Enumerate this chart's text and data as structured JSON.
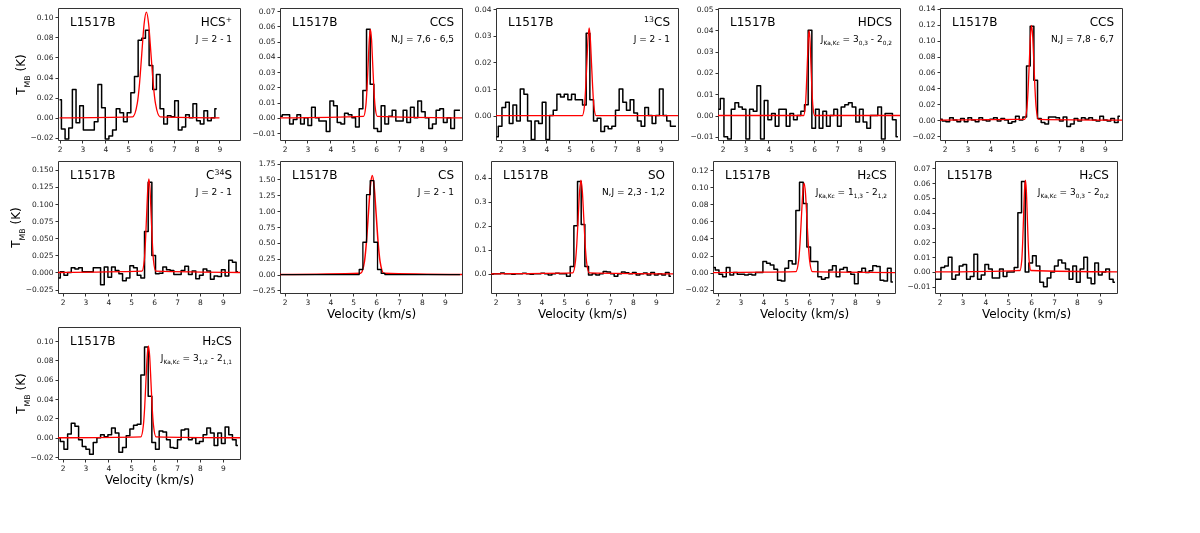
{
  "chart_data": [
    {
      "type": "step",
      "title": "HCS⁺",
      "subtitle": "J = 2 - 1",
      "annotations": [
        "L1517B"
      ],
      "ylabel": "T$_{MB}$ (K)",
      "xlim": [
        1.93,
        9.9
      ],
      "xticks": [
        2,
        3,
        4,
        5,
        6,
        7,
        8,
        9
      ],
      "ylim": [
        -0.022,
        0.109
      ],
      "yticks": [
        {
          "value": -0.02,
          "label": "−0.02"
        },
        {
          "value": 0,
          "label": "0.00"
        },
        {
          "value": 0.02,
          "label": "0.02"
        },
        {
          "value": 0.04,
          "label": "0.04"
        },
        {
          "value": 0.06,
          "label": "0.06"
        },
        {
          "value": 0.08,
          "label": "0.08"
        },
        {
          "value": 0.1,
          "label": "0.10"
        }
      ],
      "x": [
        2,
        2.16,
        2.32,
        2.48,
        2.64,
        2.8,
        2.96,
        3.12,
        3.28,
        3.44,
        3.6,
        3.76,
        3.92,
        4.08,
        4.24,
        4.4,
        4.56,
        4.72,
        4.88,
        5.04,
        5.2,
        5.36,
        5.52,
        5.68,
        5.84,
        6,
        6.16,
        6.32,
        6.48,
        6.64,
        6.8,
        6.96,
        7.12,
        7.28,
        7.44,
        7.6,
        7.76,
        7.92,
        8.08,
        8.24,
        8.4,
        8.56,
        8.72,
        8.88
      ],
      "series": [
        {
          "color": "#000000",
          "values": [
            0.018,
            -0.011,
            -0.021,
            -0.01,
            0.028,
            -0.005,
            0.012,
            -0.012,
            -0.012,
            -0.012,
            -0.004,
            0.033,
            0.01,
            -0.021,
            -0.018,
            -0.012,
            0.009,
            0.005,
            -0.004,
            0.005,
            0.025,
            0.041,
            0.077,
            0.079,
            0.087,
            0.052,
            0.028,
            0.043,
            0.009,
            -0.006,
            0.002,
            0.001,
            0.017,
            -0.012,
            -0.009,
            0.003,
            0,
            0.014,
            -0.003,
            -0.006,
            0.007,
            -0.003,
            0,
            0.009
          ]
        },
        {
          "type": "line",
          "color": "#ff0000",
          "x": [
            2,
            5.2,
            5.4,
            5.5,
            5.6,
            5.7,
            5.8,
            5.9,
            6,
            6.1,
            6.2,
            6.4,
            9
          ],
          "values": [
            0,
            0.001,
            0.014,
            0.034,
            0.064,
            0.093,
            0.105,
            0.093,
            0.064,
            0.034,
            0.014,
            0.001,
            0
          ]
        }
      ]
    },
    {
      "type": "step",
      "title": "CCS",
      "subtitle": "N,J = 7,6 - 6,5",
      "annotations": [
        "L1517B"
      ],
      "xlim": [
        1.8,
        9.75
      ],
      "xticks": [
        2,
        3,
        4,
        5,
        6,
        7,
        8,
        9
      ],
      "ylim": [
        -0.0145,
        0.072
      ],
      "yticks": [
        {
          "value": -0.01,
          "label": "−0.01"
        },
        {
          "value": 0,
          "label": "0.00"
        },
        {
          "value": 0.01,
          "label": "0.01"
        },
        {
          "value": 0.02,
          "label": "0.02"
        },
        {
          "value": 0.03,
          "label": "0.03"
        },
        {
          "value": 0.04,
          "label": "0.04"
        },
        {
          "value": 0.05,
          "label": "0.05"
        },
        {
          "value": 0.06,
          "label": "0.06"
        },
        {
          "value": 0.07,
          "label": "0.07"
        }
      ],
      "x": [
        1.82,
        1.98,
        2.14,
        2.3,
        2.46,
        2.62,
        2.78,
        2.94,
        3.1,
        3.26,
        3.42,
        3.58,
        3.74,
        3.9,
        4.06,
        4.22,
        4.38,
        4.54,
        4.7,
        4.86,
        5.02,
        5.18,
        5.34,
        5.5,
        5.66,
        5.82,
        5.98,
        6.14,
        6.3,
        6.46,
        6.62,
        6.78,
        6.94,
        7.1,
        7.26,
        7.42,
        7.58,
        7.74,
        7.9,
        8.06,
        8.22,
        8.38,
        8.54,
        8.7,
        8.86,
        9.02,
        9.18,
        9.34,
        9.5,
        9.66
      ],
      "series": [
        {
          "color": "#000000",
          "values": [
            0.001,
            0.002,
            0.002,
            -0.004,
            -0.001,
            0.002,
            -0.004,
            0,
            -0.005,
            0.007,
            0,
            -0.002,
            -0.002,
            -0.009,
            0.011,
            0.008,
            -0.003,
            -0.004,
            0.003,
            0.002,
            0,
            -0.006,
            0.006,
            0.018,
            0.058,
            0.022,
            -0.007,
            -0.009,
            0.008,
            -0.004,
            0.001,
            0.005,
            -0.002,
            -0.002,
            0.005,
            -0.003,
            0.007,
            0,
            0.011,
            0.004,
            0,
            -0.007,
            -0.004,
            0.005,
            0.006,
            -0.003,
            0,
            -0.007,
            0.005,
            0.005
          ]
        },
        {
          "type": "line",
          "color": "#ff0000",
          "x": [
            1.8,
            5.45,
            5.55,
            5.6,
            5.65,
            5.7,
            5.75,
            5.8,
            5.85,
            5.9,
            5.95,
            6.05,
            9.75
          ],
          "values": [
            0,
            0.001,
            0.008,
            0.019,
            0.035,
            0.051,
            0.058,
            0.051,
            0.035,
            0.019,
            0.008,
            0.001,
            0
          ]
        }
      ]
    },
    {
      "type": "step",
      "title": "$^{13}$CS",
      "subtitle": "J = 2 - 1",
      "annotations": [
        "L1517B"
      ],
      "xlim": [
        1.8,
        9.75
      ],
      "xticks": [
        2,
        3,
        4,
        5,
        6,
        7,
        8,
        9
      ],
      "ylim": [
        -0.0092,
        0.0405
      ],
      "yticks": [
        {
          "value": 0,
          "label": "0.00"
        },
        {
          "value": 0.01,
          "label": "0.01"
        },
        {
          "value": 0.02,
          "label": "0.02"
        },
        {
          "value": 0.03,
          "label": "0.03"
        },
        {
          "value": 0.04,
          "label": "0.04"
        }
      ],
      "x": [
        1.82,
        1.98,
        2.14,
        2.3,
        2.46,
        2.62,
        2.78,
        2.94,
        3.1,
        3.26,
        3.42,
        3.58,
        3.74,
        3.9,
        4.06,
        4.22,
        4.38,
        4.54,
        4.7,
        4.86,
        5.02,
        5.18,
        5.34,
        5.5,
        5.66,
        5.82,
        5.98,
        6.14,
        6.3,
        6.46,
        6.62,
        6.78,
        6.94,
        7.1,
        7.26,
        7.42,
        7.58,
        7.74,
        7.9,
        8.06,
        8.22,
        8.38,
        8.54,
        8.7,
        8.86,
        9.02,
        9.18,
        9.34,
        9.5,
        9.66
      ],
      "series": [
        {
          "color": "#000000",
          "values": [
            -0.008,
            -0.004,
            0.003,
            0.005,
            -0.003,
            0.004,
            -0.002,
            0.01,
            0.008,
            -0.002,
            -0.009,
            -0.002,
            -0.003,
            0.005,
            -0.009,
            0,
            0.002,
            0.008,
            0.007,
            0.008,
            0.006,
            0.008,
            0.006,
            0.006,
            0.004,
            0.031,
            0.006,
            -0.002,
            -0.001,
            -0.006,
            -0.004,
            -0.005,
            -0.004,
            0.002,
            0.01,
            0.005,
            0.002,
            0.006,
            0.001,
            -0.002,
            -0.004,
            0.003,
            0,
            -0.003,
            0,
            0.01,
            0,
            -0.002,
            -0.004,
            -0.004
          ]
        },
        {
          "type": "line",
          "color": "#ff0000",
          "x": [
            1.8,
            5.57,
            5.67,
            5.72,
            5.77,
            5.82,
            5.87,
            5.92,
            5.97,
            6.02,
            6.07,
            6.17,
            9.75
          ],
          "values": [
            0,
            0,
            0.004,
            0.011,
            0.02,
            0.029,
            0.033,
            0.029,
            0.02,
            0.011,
            0.004,
            0,
            0
          ]
        }
      ]
    },
    {
      "type": "step",
      "title": "HDCS",
      "subtitle": "J$_{Ka,Kc}$ = 3$_{0,3}$ - 2$_{0,2}$",
      "annotations": [
        "L1517B"
      ],
      "xlim": [
        1.8,
        9.75
      ],
      "xticks": [
        2,
        3,
        4,
        5,
        6,
        7,
        8,
        9
      ],
      "ylim": [
        -0.0115,
        0.0505
      ],
      "yticks": [
        {
          "value": -0.01,
          "label": "−0.01"
        },
        {
          "value": 0,
          "label": "0.00"
        },
        {
          "value": 0.01,
          "label": "0.01"
        },
        {
          "value": 0.02,
          "label": "0.02"
        },
        {
          "value": 0.03,
          "label": "0.03"
        },
        {
          "value": 0.04,
          "label": "0.04"
        },
        {
          "value": 0.05,
          "label": "0.05"
        }
      ],
      "x": [
        1.82,
        1.98,
        2.14,
        2.3,
        2.46,
        2.62,
        2.78,
        2.94,
        3.1,
        3.26,
        3.42,
        3.58,
        3.74,
        3.9,
        4.06,
        4.22,
        4.38,
        4.54,
        4.7,
        4.86,
        5.02,
        5.18,
        5.34,
        5.5,
        5.66,
        5.82,
        5.98,
        6.14,
        6.3,
        6.46,
        6.62,
        6.78,
        6.94,
        7.1,
        7.26,
        7.42,
        7.58,
        7.74,
        7.9,
        8.06,
        8.22,
        8.38,
        8.54,
        8.7,
        8.86,
        9.02,
        9.18,
        9.34,
        9.5,
        9.66
      ],
      "series": [
        {
          "color": "#000000",
          "values": [
            0.003,
            0.008,
            -0.01,
            -0.011,
            0.003,
            0.006,
            0.004,
            0.003,
            -0.011,
            0.003,
            0.002,
            0.014,
            -0.011,
            0.007,
            -0.002,
            0.001,
            -0.005,
            0.003,
            0.003,
            -0.005,
            0.001,
            -0.002,
            0,
            0.002,
            0.005,
            0.04,
            -0.006,
            0.003,
            -0.006,
            0.002,
            -0.005,
            0,
            0.003,
            -0.005,
            0.004,
            0.005,
            0.006,
            0.004,
            -0.003,
            0.003,
            -0.003,
            -0.006,
            0,
            0,
            0.004,
            -0.011,
            0.001,
            0.001,
            -0.002,
            -0.01
          ]
        },
        {
          "type": "line",
          "color": "#ff0000",
          "x": [
            1.8,
            5.54,
            5.62,
            5.66,
            5.7,
            5.74,
            5.78,
            5.82,
            5.86,
            5.9,
            5.94,
            6.02,
            9.75
          ],
          "values": [
            0,
            0,
            0.005,
            0.013,
            0.024,
            0.035,
            0.04,
            0.035,
            0.024,
            0.013,
            0.005,
            0,
            0
          ]
        }
      ]
    },
    {
      "type": "step",
      "title": "CCS",
      "subtitle": "N,J = 7,8 - 6,7",
      "annotations": [
        "L1517B"
      ],
      "xlim": [
        1.8,
        9.75
      ],
      "xticks": [
        2,
        3,
        4,
        5,
        6,
        7,
        8,
        9
      ],
      "ylim": [
        -0.025,
        0.141
      ],
      "yticks": [
        {
          "value": -0.02,
          "label": "−0.02"
        },
        {
          "value": 0,
          "label": "0.00"
        },
        {
          "value": 0.02,
          "label": "0.02"
        },
        {
          "value": 0.04,
          "label": "0.04"
        },
        {
          "value": 0.06,
          "label": "0.06"
        },
        {
          "value": 0.08,
          "label": "0.08"
        },
        {
          "value": 0.1,
          "label": "0.10"
        },
        {
          "value": 0.12,
          "label": "0.12"
        },
        {
          "value": 0.14,
          "label": "0.14"
        }
      ],
      "x": [
        1.82,
        1.98,
        2.14,
        2.3,
        2.46,
        2.62,
        2.78,
        2.94,
        3.1,
        3.26,
        3.42,
        3.58,
        3.74,
        3.9,
        4.06,
        4.22,
        4.38,
        4.54,
        4.7,
        4.86,
        5.02,
        5.18,
        5.34,
        5.5,
        5.66,
        5.82,
        5.98,
        6.14,
        6.3,
        6.46,
        6.62,
        6.78,
        6.94,
        7.1,
        7.26,
        7.42,
        7.58,
        7.74,
        7.9,
        8.06,
        8.22,
        8.38,
        8.54,
        8.7,
        8.86,
        9.02,
        9.18,
        9.34,
        9.5,
        9.66
      ],
      "series": [
        {
          "color": "#000000",
          "values": [
            0.001,
            -0.001,
            -0.002,
            0.003,
            0,
            -0.002,
            0.002,
            -0.002,
            0.003,
            0,
            -0.002,
            0.003,
            0,
            -0.001,
            0.001,
            0.003,
            -0.001,
            0.002,
            0,
            -0.004,
            -0.002,
            0.005,
            0,
            0.004,
            0.068,
            0.118,
            0.05,
            0.002,
            -0.003,
            -0.005,
            0.004,
            0.004,
            0.003,
            -0.001,
            0.004,
            -0.008,
            -0.005,
            0.002,
            -0.001,
            0.003,
            0.001,
            0.003,
            0,
            -0.001,
            0.005,
            0,
            -0.001,
            0.002,
            -0.003,
            0.005
          ]
        },
        {
          "type": "line",
          "color": "#ff0000",
          "x": [
            1.8,
            5.5,
            5.6,
            5.65,
            5.7,
            5.75,
            5.8,
            5.85,
            5.9,
            5.95,
            6,
            6.1,
            9.75
          ],
          "values": [
            0,
            0.001,
            0.016,
            0.039,
            0.072,
            0.105,
            0.119,
            0.105,
            0.072,
            0.039,
            0.016,
            0.001,
            0
          ]
        }
      ]
    },
    {
      "type": "step",
      "title": "C$^{34}$S",
      "subtitle": "J = 2 - 1",
      "annotations": [
        "L1517B"
      ],
      "ylabel": "T$_{MB}$ (K)",
      "xlim": [
        1.8,
        9.75
      ],
      "xticks": [
        2,
        3,
        4,
        5,
        6,
        7,
        8,
        9
      ],
      "ylim": [
        -0.03,
        0.163
      ],
      "yticks": [
        {
          "value": -0.025,
          "label": "−0.025"
        },
        {
          "value": 0,
          "label": "0.000"
        },
        {
          "value": 0.025,
          "label": "0.025"
        },
        {
          "value": 0.05,
          "label": "0.050"
        },
        {
          "value": 0.075,
          "label": "0.075"
        },
        {
          "value": 0.1,
          "label": "0.100"
        },
        {
          "value": 0.125,
          "label": "0.125"
        },
        {
          "value": 0.15,
          "label": "0.150"
        }
      ],
      "x": [
        1.82,
        1.98,
        2.14,
        2.3,
        2.46,
        2.62,
        2.78,
        2.94,
        3.1,
        3.26,
        3.42,
        3.58,
        3.74,
        3.9,
        4.06,
        4.22,
        4.38,
        4.54,
        4.7,
        4.86,
        5.02,
        5.18,
        5.34,
        5.5,
        5.66,
        5.82,
        5.98,
        6.14,
        6.3,
        6.46,
        6.62,
        6.78,
        6.94,
        7.1,
        7.26,
        7.42,
        7.58,
        7.74,
        7.9,
        8.06,
        8.22,
        8.38,
        8.54,
        8.7,
        8.86,
        9.02,
        9.18,
        9.34,
        9.5,
        9.66
      ],
      "series": [
        {
          "color": "#000000",
          "values": [
            -0.008,
            0.001,
            -0.004,
            0,
            0.007,
            0.005,
            0.007,
            0.001,
            0.001,
            0.001,
            0.007,
            0.007,
            -0.018,
            0.008,
            -0.007,
            0.008,
            0.003,
            -0.002,
            -0.012,
            -0.008,
            0.01,
            0.007,
            -0.004,
            -0.008,
            0.06,
            0.132,
            0.025,
            -0.002,
            -0.001,
            0.008,
            0.004,
            0.003,
            -0.003,
            -0.003,
            0.003,
            0.009,
            -0.003,
            0.002,
            -0.009,
            -0.004,
            0.005,
            0.002,
            -0.01,
            -0.005,
            -0.006,
            0.004,
            -0.005,
            0.018,
            0.015,
            0.001
          ]
        },
        {
          "type": "line",
          "color": "#ff0000",
          "x": [
            1.8,
            5.47,
            5.57,
            5.62,
            5.67,
            5.72,
            5.77,
            5.82,
            5.87,
            5.92,
            5.97,
            6.07,
            9.75
          ],
          "values": [
            0,
            0.002,
            0.018,
            0.045,
            0.083,
            0.121,
            0.137,
            0.121,
            0.083,
            0.045,
            0.018,
            0.002,
            0
          ]
        }
      ]
    },
    {
      "type": "step",
      "title": "CS",
      "subtitle": "J = 2 - 1",
      "annotations": [
        "L1517B"
      ],
      "xlabel": "Velocity (km/s)",
      "xlim": [
        1.8,
        9.75
      ],
      "xticks": [
        2,
        3,
        4,
        5,
        6,
        7,
        8,
        9
      ],
      "ylim": [
        -0.29,
        1.79
      ],
      "yticks": [
        {
          "value": -0.25,
          "label": "−0.25"
        },
        {
          "value": 0,
          "label": "0.00"
        },
        {
          "value": 0.25,
          "label": "0.25"
        },
        {
          "value": 0.5,
          "label": "0.50"
        },
        {
          "value": 0.75,
          "label": "0.75"
        },
        {
          "value": 1,
          "label": "1.00"
        },
        {
          "value": 1.25,
          "label": "1.25"
        },
        {
          "value": 1.5,
          "label": "1.50"
        },
        {
          "value": 1.75,
          "label": "1.75"
        }
      ],
      "x": [
        1.82,
        1.98,
        2.14,
        2.3,
        2.46,
        2.62,
        2.78,
        2.94,
        3.1,
        3.26,
        3.42,
        3.58,
        3.74,
        3.9,
        4.06,
        4.22,
        4.38,
        4.54,
        4.7,
        4.86,
        5.02,
        5.18,
        5.34,
        5.5,
        5.66,
        5.82,
        5.98,
        6.14,
        6.3,
        6.46,
        6.62,
        6.78,
        6.94,
        7.1,
        7.26,
        7.42,
        7.58,
        7.74,
        7.9,
        8.06,
        8.22,
        8.38,
        8.54,
        8.7,
        8.86,
        9.02,
        9.18,
        9.34,
        9.5,
        9.66
      ],
      "series": [
        {
          "type": "line",
          "color": "#ff0000",
          "x": [
            1.8,
            5.32,
            5.49,
            5.575,
            5.66,
            5.745,
            5.83,
            5.915,
            6,
            6.085,
            6.17,
            6.34,
            9.75
          ],
          "values": [
            0,
            0.02,
            0.21,
            0.51,
            0.95,
            1.38,
            1.56,
            1.38,
            0.95,
            0.51,
            0.21,
            0.02,
            0
          ]
        },
        {
          "color": "#000000",
          "values": [
            0,
            0,
            0,
            0,
            0,
            0,
            0,
            0,
            0,
            0,
            0,
            0,
            0,
            0,
            0,
            0,
            0,
            0,
            0,
            0,
            0,
            0,
            0.08,
            0.51,
            1.26,
            1.48,
            0.51,
            0.08,
            0.02,
            0,
            0,
            0,
            0,
            0,
            0,
            0,
            0,
            0,
            0,
            0,
            0,
            0,
            0,
            0,
            0,
            0,
            0,
            0,
            0,
            0
          ]
        }
      ]
    },
    {
      "type": "step",
      "title": "SO",
      "subtitle": "N,J = 2,3 - 1,2",
      "annotations": [
        "L1517B"
      ],
      "xlabel": "Velocity (km/s)",
      "xlim": [
        1.8,
        9.75
      ],
      "xticks": [
        2,
        3,
        4,
        5,
        6,
        7,
        8,
        9
      ],
      "ylim": [
        -0.08,
        0.47
      ],
      "yticks": [
        {
          "value": 0,
          "label": "0.0"
        },
        {
          "value": 0.1,
          "label": "0.1"
        },
        {
          "value": 0.2,
          "label": "0.2"
        },
        {
          "value": 0.3,
          "label": "0.3"
        },
        {
          "value": 0.4,
          "label": "0.4"
        }
      ],
      "x": [
        1.82,
        1.98,
        2.14,
        2.3,
        2.46,
        2.62,
        2.78,
        2.94,
        3.1,
        3.26,
        3.42,
        3.58,
        3.74,
        3.9,
        4.06,
        4.22,
        4.38,
        4.54,
        4.7,
        4.86,
        5.02,
        5.18,
        5.34,
        5.5,
        5.66,
        5.82,
        5.98,
        6.14,
        6.3,
        6.46,
        6.62,
        6.78,
        6.94,
        7.1,
        7.26,
        7.42,
        7.58,
        7.74,
        7.9,
        8.06,
        8.22,
        8.38,
        8.54,
        8.7,
        8.86,
        9.02,
        9.18,
        9.34,
        9.5,
        9.66
      ],
      "series": [
        {
          "color": "#000000",
          "values": [
            -0.002,
            0,
            0,
            0.003,
            0,
            0,
            -0.002,
            0,
            0,
            0.002,
            0,
            -0.002,
            0,
            0,
            0.002,
            0,
            -0.005,
            0,
            0.002,
            0,
            0,
            -0.01,
            0.03,
            0.2,
            0.385,
            0.205,
            0.03,
            -0.005,
            0,
            -0.005,
            0,
            0.01,
            0.008,
            0,
            -0.01,
            0,
            0.008,
            0.004,
            0,
            0.005,
            -0.005,
            0,
            0.003,
            -0.005,
            0.005,
            -0.005,
            0,
            -0.005,
            0.005,
            -0.01
          ]
        },
        {
          "type": "line",
          "color": "#ff0000",
          "x": [
            1.8,
            5.37,
            5.49,
            5.55,
            5.61,
            5.67,
            5.73,
            5.79,
            5.85,
            5.91,
            5.97,
            6.09,
            9.75
          ],
          "values": [
            0,
            0.004,
            0.053,
            0.127,
            0.237,
            0.344,
            0.39,
            0.344,
            0.237,
            0.127,
            0.053,
            0.004,
            0
          ]
        }
      ]
    },
    {
      "type": "step",
      "title": "H₂CS",
      "subtitle": "J$_{Ka,Kc}$ = 1$_{1,3}$ - 2$_{1,2}$",
      "annotations": [
        "L1517B"
      ],
      "xlabel": "Velocity (km/s)",
      "xlim": [
        1.8,
        9.75
      ],
      "xticks": [
        2,
        3,
        4,
        5,
        6,
        7,
        8,
        9
      ],
      "ylim": [
        -0.024,
        0.131
      ],
      "yticks": [
        {
          "value": -0.02,
          "label": "−0.02"
        },
        {
          "value": 0,
          "label": "0.00"
        },
        {
          "value": 0.02,
          "label": "0.02"
        },
        {
          "value": 0.04,
          "label": "0.04"
        },
        {
          "value": 0.06,
          "label": "0.06"
        },
        {
          "value": 0.08,
          "label": "0.08"
        },
        {
          "value": 0.1,
          "label": "0.10"
        },
        {
          "value": 0.12,
          "label": "0.12"
        }
      ],
      "x": [
        1.82,
        1.98,
        2.14,
        2.3,
        2.46,
        2.62,
        2.78,
        2.94,
        3.1,
        3.26,
        3.42,
        3.58,
        3.74,
        3.9,
        4.06,
        4.22,
        4.38,
        4.54,
        4.7,
        4.86,
        5.02,
        5.18,
        5.34,
        5.5,
        5.66,
        5.82,
        5.98,
        6.14,
        6.3,
        6.46,
        6.62,
        6.78,
        6.94,
        7.1,
        7.26,
        7.42,
        7.58,
        7.74,
        7.9,
        8.06,
        8.22,
        8.38,
        8.54,
        8.7,
        8.86,
        9.02,
        9.18,
        9.34,
        9.5,
        9.66
      ],
      "series": [
        {
          "color": "#000000",
          "values": [
            0.006,
            0.003,
            -0.002,
            -0.005,
            0.006,
            -0.003,
            0,
            -0.002,
            -0.002,
            -0.003,
            -0.002,
            -0.003,
            0,
            0,
            0.013,
            0.011,
            0.009,
            0.004,
            -0.009,
            -0.01,
            0.005,
            0.014,
            0.01,
            0.073,
            0.106,
            0.081,
            0.03,
            0.013,
            0.013,
            -0.005,
            -0.008,
            -0.006,
            0.003,
            0.008,
            -0.005,
            0.004,
            0.006,
            0.001,
            -0.002,
            -0.013,
            0.001,
            0.005,
            0,
            0.002,
            0.008,
            0.007,
            -0.009,
            -0.01,
            0.005,
            -0.011
          ]
        },
        {
          "type": "line",
          "color": "#ff0000",
          "x": [
            1.8,
            5.42,
            5.54,
            5.6,
            5.66,
            5.72,
            5.78,
            5.84,
            5.9,
            5.96,
            6.02,
            6.14,
            9.75
          ],
          "values": [
            0,
            0.001,
            0.014,
            0.034,
            0.064,
            0.093,
            0.105,
            0.093,
            0.064,
            0.034,
            0.014,
            0.001,
            0
          ]
        }
      ]
    },
    {
      "type": "step",
      "title": "H₂CS",
      "subtitle": "J$_{Ka,Kc}$ = 3$_{0,3}$ - 2$_{0,2}$",
      "annotations": [
        "L1517B"
      ],
      "xlabel": "Velocity (km/s)",
      "xlim": [
        1.8,
        9.75
      ],
      "xticks": [
        2,
        3,
        4,
        5,
        6,
        7,
        8,
        9
      ],
      "ylim": [
        -0.0142,
        0.0749
      ],
      "yticks": [
        {
          "value": -0.01,
          "label": "−0.01"
        },
        {
          "value": 0,
          "label": "0.00"
        },
        {
          "value": 0.01,
          "label": "0.01"
        },
        {
          "value": 0.02,
          "label": "0.02"
        },
        {
          "value": 0.03,
          "label": "0.03"
        },
        {
          "value": 0.04,
          "label": "0.04"
        },
        {
          "value": 0.05,
          "label": "0.05"
        },
        {
          "value": 0.06,
          "label": "0.06"
        },
        {
          "value": 0.07,
          "label": "0.07"
        }
      ],
      "x": [
        1.82,
        1.98,
        2.14,
        2.3,
        2.46,
        2.62,
        2.78,
        2.94,
        3.1,
        3.26,
        3.42,
        3.58,
        3.74,
        3.9,
        4.06,
        4.22,
        4.38,
        4.54,
        4.7,
        4.86,
        5.02,
        5.18,
        5.34,
        5.5,
        5.66,
        5.82,
        5.98,
        6.14,
        6.3,
        6.46,
        6.62,
        6.78,
        6.94,
        7.1,
        7.26,
        7.42,
        7.58,
        7.74,
        7.9,
        8.06,
        8.22,
        8.38,
        8.54,
        8.7,
        8.86,
        9.02,
        9.18,
        9.34,
        9.5,
        9.66
      ],
      "series": [
        {
          "color": "#000000",
          "values": [
            -0.005,
            -0.005,
            0.003,
            0.004,
            0.01,
            -0.005,
            -0.002,
            0.004,
            0.005,
            -0.005,
            -0.003,
            0.012,
            -0.005,
            -0.002,
            0.005,
            0.002,
            -0.004,
            -0.004,
            0.002,
            -0.003,
            0,
            0,
            0.003,
            0.04,
            0.061,
            0,
            0.006,
            0.011,
            0.004,
            -0.007,
            -0.01,
            -0.004,
            0,
            0.004,
            0.008,
            0.006,
            0.002,
            -0.005,
            0.004,
            -0.007,
            0.002,
            0.01,
            -0.004,
            -0.008,
            0.006,
            -0.002,
            0,
            0.002,
            -0.005,
            -0.007
          ]
        },
        {
          "type": "line",
          "color": "#ff0000",
          "x": [
            1.8,
            5.51,
            5.59,
            5.63,
            5.67,
            5.71,
            5.75,
            5.79,
            5.83,
            5.87,
            5.91,
            5.99,
            9.75
          ],
          "values": [
            0,
            0.001,
            0.008,
            0.02,
            0.038,
            0.055,
            0.062,
            0.055,
            0.038,
            0.02,
            0.008,
            0.001,
            0
          ]
        }
      ]
    },
    {
      "type": "step",
      "title": "H₂CS",
      "subtitle": "J$_{Ka,Kc}$ = 3$_{1,2}$ - 2$_{1,1}$",
      "annotations": [
        "L1517B"
      ],
      "ylabel": "T$_{MB}$ (K)",
      "xlabel": "Velocity (km/s)",
      "xlim": [
        1.8,
        9.75
      ],
      "xticks": [
        2,
        3,
        4,
        5,
        6,
        7,
        8,
        9
      ],
      "ylim": [
        -0.022,
        0.1146
      ],
      "yticks": [
        {
          "value": -0.02,
          "label": "−0.02"
        },
        {
          "value": 0,
          "label": "0.00"
        },
        {
          "value": 0.02,
          "label": "0.02"
        },
        {
          "value": 0.04,
          "label": "0.04"
        },
        {
          "value": 0.06,
          "label": "0.06"
        },
        {
          "value": 0.08,
          "label": "0.08"
        },
        {
          "value": 0.1,
          "label": "0.10"
        }
      ],
      "x": [
        1.82,
        1.98,
        2.14,
        2.3,
        2.46,
        2.62,
        2.78,
        2.94,
        3.1,
        3.26,
        3.42,
        3.58,
        3.74,
        3.9,
        4.06,
        4.22,
        4.38,
        4.54,
        4.7,
        4.86,
        5.02,
        5.18,
        5.34,
        5.5,
        5.66,
        5.82,
        5.98,
        6.14,
        6.3,
        6.46,
        6.62,
        6.78,
        6.94,
        7.1,
        7.26,
        7.42,
        7.58,
        7.74,
        7.9,
        8.06,
        8.22,
        8.38,
        8.54,
        8.7,
        8.86,
        9.02,
        9.18,
        9.34,
        9.5,
        9.66
      ],
      "series": [
        {
          "color": "#000000",
          "values": [
            0,
            -0.004,
            -0.012,
            0.004,
            0.015,
            0.012,
            -0.002,
            -0.009,
            -0.012,
            -0.017,
            -0.005,
            0,
            0.003,
            0.001,
            0.003,
            0.01,
            0.005,
            -0.015,
            -0.01,
            0.002,
            0.009,
            0.013,
            0.014,
            0.065,
            0.094,
            0.043,
            -0.005,
            -0.012,
            0.007,
            0.006,
            -0.002,
            -0.01,
            -0.011,
            -0.002,
            0.008,
            0.009,
            -0.002,
            0,
            -0.006,
            -0.004,
            0.003,
            0.01,
            0.005,
            -0.008,
            0.005,
            -0.006,
            0.011,
            0.003,
            -0.002,
            -0.008
          ]
        },
        {
          "type": "line",
          "color": "#ff0000",
          "x": [
            1.8,
            5.42,
            5.53,
            5.585,
            5.64,
            5.695,
            5.75,
            5.805,
            5.86,
            5.915,
            5.97,
            6.08,
            9.75
          ],
          "values": [
            0,
            0.001,
            0.013,
            0.031,
            0.058,
            0.084,
            0.095,
            0.084,
            0.058,
            0.031,
            0.013,
            0.001,
            0
          ]
        }
      ]
    }
  ]
}
